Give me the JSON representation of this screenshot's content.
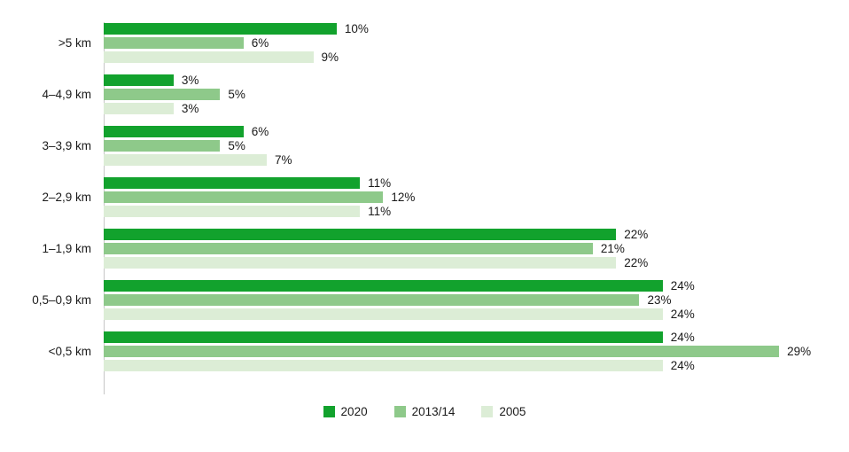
{
  "chart_data": {
    "type": "bar",
    "orientation": "horizontal",
    "title": "",
    "xlabel": "",
    "ylabel": "",
    "xlim": [
      0,
      32
    ],
    "grid": false,
    "legend_position": "bottom-center",
    "value_suffix": "%",
    "axis_color": "#c6c6c6",
    "categories": [
      ">5 km",
      "4–4,9 km",
      "3–3,9 km",
      "2–2,9 km",
      "1–1,9 km",
      "0,5–0,9 km",
      "<0,5 km"
    ],
    "series": [
      {
        "name": "2020",
        "label": "2020",
        "color": "#12a22d",
        "values": [
          10,
          3,
          6,
          11,
          22,
          24,
          24
        ]
      },
      {
        "name": "2013-14",
        "label": "2013/14",
        "color": "#8ec98a",
        "values": [
          6,
          5,
          5,
          12,
          21,
          23,
          29
        ]
      },
      {
        "name": "2005",
        "label": "2005",
        "color": "#dcedd6",
        "values": [
          9,
          3,
          7,
          11,
          22,
          24,
          24
        ]
      }
    ]
  }
}
